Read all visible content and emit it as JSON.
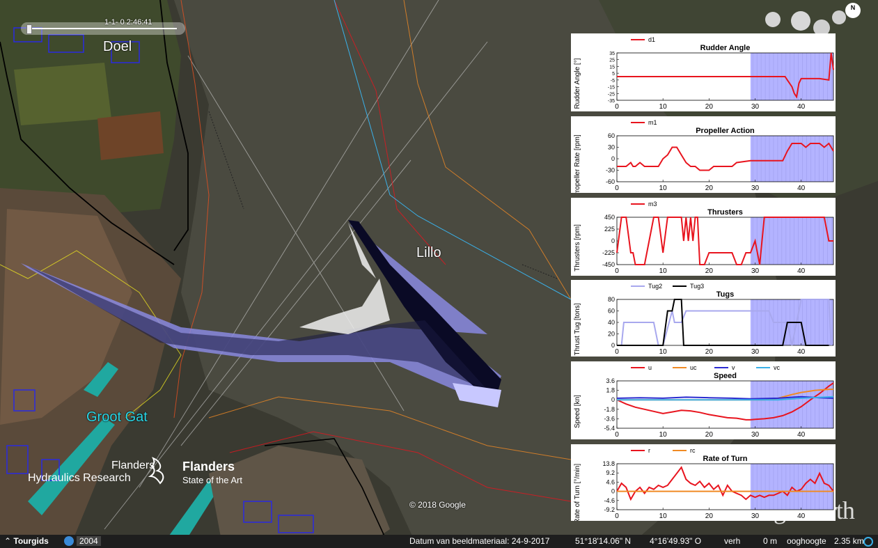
{
  "header": {
    "time_label": "1-1-  0   2:46:41"
  },
  "map": {
    "places": [
      "Doel",
      "Lillo",
      "Groot Gat"
    ],
    "copyright": "© 2018 Google",
    "watermark": "Google earth",
    "compass": "N"
  },
  "logo": {
    "left_line1": "Flanders",
    "left_line2": "Hydraulics Research",
    "right_line1": "Flanders",
    "right_line2": "State of the Art"
  },
  "bottom_bar": {
    "tour_label": "Tourgids",
    "year": "2004",
    "date": "Datum van beeldmateriaal: 24-9-2017",
    "lat": "51°18'14.06\" N",
    "lon": "4°16'49.93\" O",
    "verh": "verh",
    "elev": "0 m",
    "eye_label": "ooghoogte",
    "eye_alt": "2.35 km"
  },
  "colors": {
    "highlight": "#b3b3ff",
    "red": "#e8141e",
    "orange": "#f08a24",
    "blue": "#2a2ad0",
    "cyan": "#3ab0e8",
    "lightblue": "#a8a8ee",
    "black": "#000000"
  },
  "chart_data": [
    {
      "type": "line",
      "title": "Rudder Angle",
      "ylabel": "Rudder Angle [°]",
      "xlim": [
        0,
        47
      ],
      "ylim": [
        -35,
        35
      ],
      "yticks": [
        "35",
        "25",
        "15",
        "5",
        "-5",
        "-15",
        "-25",
        "-35"
      ],
      "xticks": [
        0,
        10,
        20,
        30,
        40
      ],
      "series": [
        {
          "name": "d1",
          "color": "#e8141e",
          "x": [
            0,
            29,
            36.5,
            37,
            38,
            38.5,
            39,
            39.5,
            40,
            41,
            42,
            44,
            46,
            46.5,
            47
          ],
          "y": [
            0,
            0,
            0,
            -5,
            -15,
            -25,
            -30,
            -10,
            -3,
            -3,
            -3,
            -3,
            -5,
            35,
            10
          ]
        }
      ]
    },
    {
      "type": "line",
      "title": "Propeller Action",
      "ylabel": "Propeller Rate [rpm]",
      "xlim": [
        0,
        47
      ],
      "ylim": [
        -60,
        60
      ],
      "yticks": [
        "60",
        "30",
        "0",
        "-30",
        "-60"
      ],
      "xticks": [
        0,
        10,
        20,
        30,
        40
      ],
      "series": [
        {
          "name": "m1",
          "color": "#e8141e",
          "x": [
            0,
            2,
            3,
            3.5,
            4,
            5,
            6,
            9,
            10,
            11,
            12,
            13,
            14,
            15,
            16,
            17,
            18,
            20,
            21,
            22,
            23,
            24,
            25,
            26,
            29,
            36,
            37,
            38,
            40,
            41,
            42,
            43,
            44,
            45,
            46,
            47
          ],
          "y": [
            -20,
            -20,
            -10,
            -20,
            -20,
            -10,
            -20,
            -20,
            0,
            10,
            30,
            30,
            10,
            -10,
            -20,
            -20,
            -30,
            -30,
            -20,
            -20,
            -20,
            -20,
            -20,
            -10,
            -5,
            -5,
            20,
            40,
            40,
            30,
            40,
            40,
            40,
            30,
            40,
            20
          ]
        }
      ]
    },
    {
      "type": "line",
      "title": "Thrusters",
      "ylabel": "Thrusters [rpm]",
      "xlim": [
        0,
        47
      ],
      "ylim": [
        -450,
        450
      ],
      "yticks": [
        "450",
        "225",
        "0",
        "-225",
        "-450"
      ],
      "xticks": [
        0,
        10,
        20,
        30,
        40
      ],
      "series": [
        {
          "name": "m3",
          "color": "#e8141e",
          "x": [
            0,
            1,
            2,
            3,
            3.5,
            4,
            6,
            7,
            8,
            9,
            10,
            11,
            14,
            14.5,
            15,
            15.5,
            16,
            16.5,
            17,
            17.5,
            18,
            19,
            20,
            21,
            22,
            23,
            24,
            25,
            26,
            27,
            28,
            29,
            30,
            31,
            32,
            37,
            38,
            39,
            45,
            46,
            47
          ],
          "y": [
            -225,
            450,
            450,
            -225,
            -225,
            -450,
            -450,
            0,
            450,
            450,
            -225,
            450,
            450,
            0,
            450,
            0,
            450,
            0,
            450,
            450,
            -450,
            -450,
            -225,
            -225,
            -225,
            -225,
            -225,
            -225,
            -450,
            -450,
            -225,
            -225,
            0,
            -450,
            450,
            450,
            450,
            450,
            450,
            0,
            0
          ]
        }
      ]
    },
    {
      "type": "line",
      "title": "Tugs",
      "ylabel": "Thrust Tug [tons]",
      "xlim": [
        0,
        47
      ],
      "ylim": [
        0,
        80
      ],
      "yticks": [
        "80",
        "60",
        "40",
        "20",
        "0"
      ],
      "xticks": [
        0,
        10,
        20,
        30,
        40
      ],
      "series": [
        {
          "name": "Tug2",
          "color": "#a8a8ee",
          "x": [
            0,
            1,
            1.5,
            8,
            9,
            10,
            12,
            12.5,
            14,
            15,
            16,
            17,
            28,
            29,
            30,
            33,
            34,
            36,
            37,
            38,
            40,
            41,
            42,
            43,
            44,
            45,
            46,
            46.5
          ],
          "y": [
            0,
            0,
            40,
            40,
            0,
            0,
            60,
            40,
            40,
            60,
            60,
            60,
            60,
            60,
            60,
            60,
            40,
            40,
            40,
            0,
            80,
            80,
            80,
            80,
            80,
            80,
            80,
            0
          ]
        },
        {
          "name": "Tug3",
          "color": "#000000",
          "x": [
            0,
            10,
            11,
            12,
            12.5,
            13,
            14,
            14.5,
            15,
            36,
            37,
            40,
            41,
            46
          ],
          "y": [
            0,
            0,
            60,
            60,
            80,
            80,
            80,
            0,
            0,
            0,
            40,
            40,
            0,
            0
          ]
        }
      ]
    },
    {
      "type": "line",
      "title": "Speed",
      "ylabel": "Speed [kn]",
      "xlim": [
        0,
        47
      ],
      "ylim": [
        -5.4,
        3.6
      ],
      "yticks": [
        "3.6",
        "1.8",
        "0",
        "-1.8",
        "-3.6",
        "-5.4"
      ],
      "xticks": [
        0,
        10,
        20,
        30,
        40
      ],
      "series": [
        {
          "name": "u",
          "color": "#e8141e",
          "x": [
            0,
            2,
            4,
            6,
            8,
            10,
            12,
            14,
            16,
            18,
            20,
            22,
            24,
            26,
            28,
            29,
            30,
            32,
            34,
            36,
            38,
            40,
            42,
            44,
            46,
            47
          ],
          "y": [
            0,
            -0.8,
            -1.4,
            -1.8,
            -2.2,
            -2.6,
            -2.3,
            -2,
            -2.1,
            -2.4,
            -2.8,
            -3.1,
            -3.4,
            -3.5,
            -3.8,
            -3.8,
            -3.7,
            -3.6,
            -3.4,
            -3,
            -2.3,
            -1.3,
            0,
            1.2,
            2.6,
            3.2
          ]
        },
        {
          "name": "uc",
          "color": "#f08a24",
          "x": [
            0,
            29,
            32,
            35,
            38,
            40,
            43,
            46,
            47
          ],
          "y": [
            0,
            0,
            0,
            0.3,
            1,
            1.4,
            1.8,
            2,
            2
          ]
        },
        {
          "name": "v",
          "color": "#2a2ad0",
          "x": [
            0,
            5,
            10,
            15,
            20,
            25,
            29,
            35,
            40,
            44,
            47
          ],
          "y": [
            0.3,
            0.4,
            0.3,
            0.5,
            0.4,
            0.3,
            0.2,
            0.3,
            0.6,
            0.4,
            0.3
          ]
        },
        {
          "name": "vc",
          "color": "#3ab0e8",
          "x": [
            0,
            10,
            20,
            29,
            35,
            40,
            47
          ],
          "y": [
            0,
            0,
            0,
            0,
            0,
            0.3,
            0.6
          ]
        }
      ]
    },
    {
      "type": "line",
      "title": "Rate of Turn",
      "ylabel": "Rate of Turn [°/min]",
      "xlim": [
        0,
        47
      ],
      "ylim": [
        -9.2,
        13.8
      ],
      "yticks": [
        "13.8",
        "9.2",
        "4.6",
        "0",
        "-4.6",
        "-9.2"
      ],
      "xticks": [
        0,
        10,
        20,
        30,
        40
      ],
      "series": [
        {
          "name": "r",
          "color": "#e8141e",
          "x": [
            0,
            1,
            2,
            3,
            4,
            5,
            6,
            7,
            8,
            9,
            10,
            11,
            12,
            13,
            14,
            15,
            16,
            17,
            18,
            19,
            20,
            21,
            22,
            23,
            24,
            25,
            26,
            27,
            28,
            29,
            30,
            31,
            32,
            33,
            34,
            35,
            36,
            37,
            38,
            39,
            40,
            41,
            42,
            43,
            44,
            45,
            46,
            47
          ],
          "y": [
            0,
            4,
            2,
            -4,
            0,
            2,
            -1,
            2,
            1,
            3,
            2,
            3,
            6,
            9,
            12,
            6,
            4,
            3,
            5,
            2,
            4,
            1,
            3,
            -2,
            3,
            0,
            -1,
            -2,
            -4,
            -2,
            -3,
            -2,
            -3,
            -2,
            -2,
            -1,
            0,
            -2,
            2,
            0,
            1,
            4,
            6,
            4,
            9,
            4,
            3,
            0
          ]
        },
        {
          "name": "rc",
          "color": "#f08a24",
          "x": [
            0,
            47
          ],
          "y": [
            0,
            0
          ]
        }
      ]
    }
  ]
}
